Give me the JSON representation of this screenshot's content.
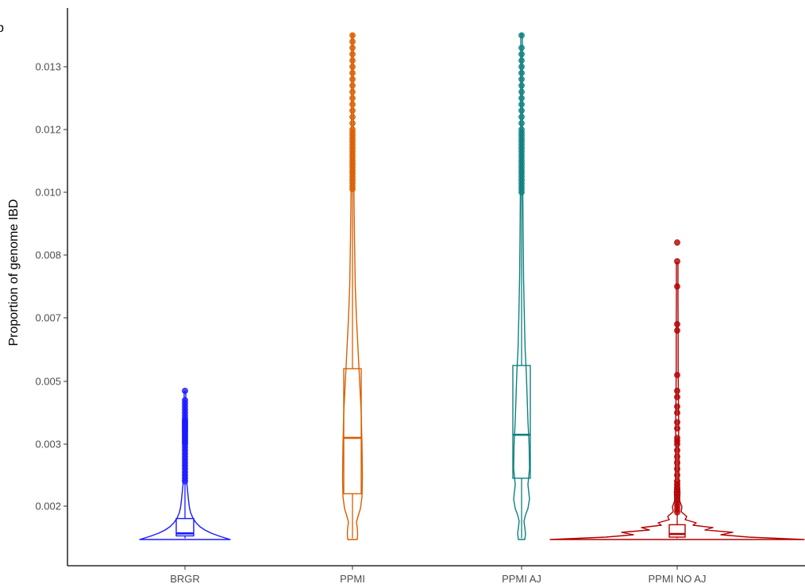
{
  "chart_data": {
    "type": "violin",
    "panel_tag": "b",
    "title": "",
    "xlabel": "",
    "ylabel": "Proportion of genome IBD",
    "y_ticks": [
      "0.002",
      "0.003",
      "0.005",
      "0.007",
      "0.008",
      "0.010",
      "0.012",
      "0.013"
    ],
    "grid": false,
    "legend": "none",
    "categories": [
      "BRGR",
      "PPMI",
      "PPMI AJ",
      "PPMI NO AJ"
    ],
    "groups": [
      {
        "category": "BRGR",
        "color": "#1a1aff",
        "min": 0.00148,
        "q1": 0.00152,
        "median": 0.00156,
        "q3": 0.0018,
        "whisker_high": 0.0024,
        "max": 0.0047,
        "outliers": [
          0.0024,
          0.00245,
          0.0025,
          0.00255,
          0.0026,
          0.00265,
          0.0027,
          0.00275,
          0.0028,
          0.00285,
          0.0029,
          0.00295,
          0.003,
          0.00305,
          0.0031,
          0.00315,
          0.0032,
          0.00325,
          0.0033,
          0.00335,
          0.0034,
          0.00345,
          0.0035,
          0.00355,
          0.0036,
          0.00365,
          0.0037,
          0.00375,
          0.0038,
          0.0039,
          0.004,
          0.0041,
          0.0042,
          0.0043,
          0.0044,
          0.0047
        ]
      },
      {
        "category": "PPMI",
        "color": "#d95f02",
        "min": 0.00148,
        "q1": 0.0022,
        "median": 0.0032,
        "q3": 0.0054,
        "whisker_high": 0.0101,
        "max": 0.0135,
        "outliers": [
          0.0101,
          0.0102,
          0.0103,
          0.0104,
          0.0105,
          0.0106,
          0.0107,
          0.0108,
          0.0109,
          0.011,
          0.0111,
          0.0112,
          0.0113,
          0.0114,
          0.0115,
          0.0116,
          0.0117,
          0.0118,
          0.0119,
          0.012,
          0.0121,
          0.0122,
          0.0123,
          0.0124,
          0.0125,
          0.0126,
          0.0127,
          0.0128,
          0.0129,
          0.013,
          0.0131,
          0.0132,
          0.0133,
          0.0134,
          0.0135
        ]
      },
      {
        "category": "PPMI AJ",
        "color": "#0f8080",
        "min": 0.00148,
        "q1": 0.00245,
        "median": 0.0033,
        "q3": 0.0055,
        "whisker_high": 0.01,
        "max": 0.0135,
        "outliers": [
          0.01,
          0.0101,
          0.0102,
          0.0103,
          0.0104,
          0.0105,
          0.0106,
          0.0107,
          0.0108,
          0.0109,
          0.011,
          0.0111,
          0.0112,
          0.0113,
          0.0114,
          0.0115,
          0.0116,
          0.0117,
          0.0118,
          0.0119,
          0.012,
          0.0121,
          0.0122,
          0.0123,
          0.0124,
          0.0125,
          0.0126,
          0.0127,
          0.0128,
          0.0129,
          0.013,
          0.0131,
          0.0132,
          0.0133,
          0.0135
        ]
      },
      {
        "category": "PPMI NO AJ",
        "color": "#b30000",
        "min": 0.00148,
        "q1": 0.0015,
        "median": 0.00155,
        "q3": 0.0017,
        "whisker_high": 0.0019,
        "max": 0.0084,
        "outliers": [
          0.0019,
          0.00195,
          0.002,
          0.00205,
          0.0021,
          0.00215,
          0.0022,
          0.00225,
          0.0023,
          0.00235,
          0.0024,
          0.0025,
          0.0026,
          0.0027,
          0.0028,
          0.0029,
          0.003,
          0.0031,
          0.0032,
          0.0035,
          0.0037,
          0.004,
          0.0042,
          0.0045,
          0.0047,
          0.0052,
          0.0066,
          0.0068,
          0.0075,
          0.0079,
          0.0084
        ]
      }
    ]
  }
}
